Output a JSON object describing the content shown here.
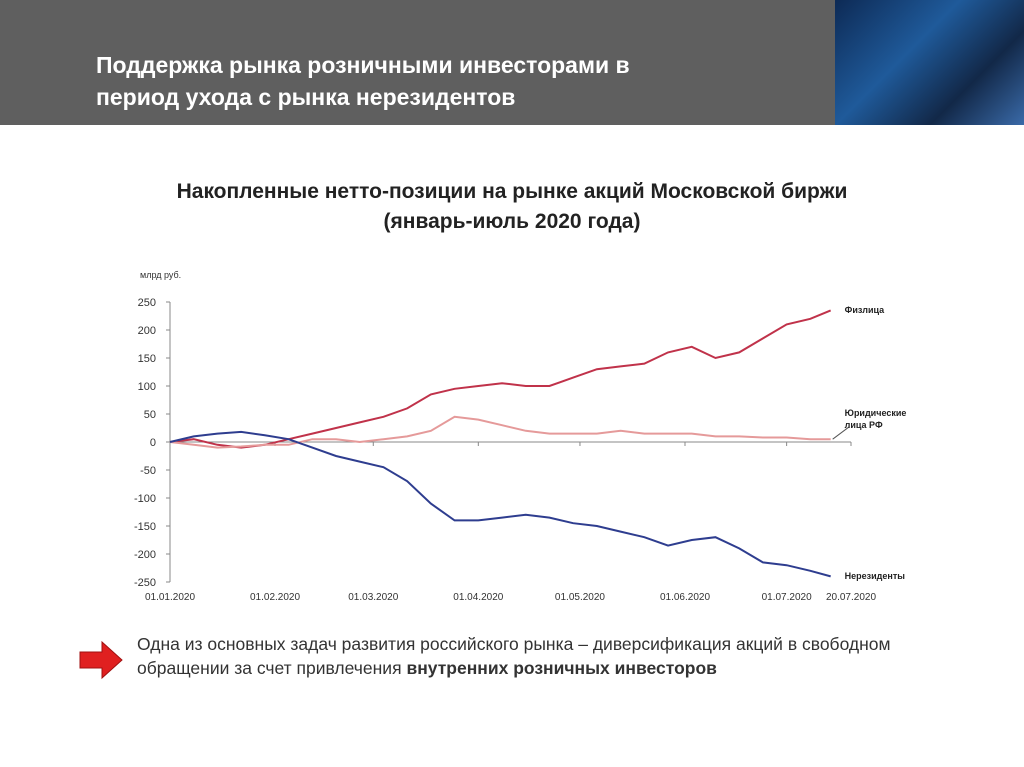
{
  "header": {
    "title_lines": [
      "Поддержка рынка розничными инвесторами в",
      "период ухода с рынка нерезидентов"
    ]
  },
  "chart_data": {
    "type": "line",
    "title": "Накопленные нетто-позиции на рынке акций Московской биржи",
    "subtitle": "(январь-июль 2020 года)",
    "y_unit": "млрд руб.",
    "x": [
      "2020-01-01",
      "2020-01-08",
      "2020-01-15",
      "2020-01-22",
      "2020-01-29",
      "2020-02-05",
      "2020-02-12",
      "2020-02-19",
      "2020-02-26",
      "2020-03-04",
      "2020-03-11",
      "2020-03-18",
      "2020-03-25",
      "2020-04-01",
      "2020-04-08",
      "2020-04-15",
      "2020-04-22",
      "2020-04-29",
      "2020-05-06",
      "2020-05-13",
      "2020-05-20",
      "2020-05-27",
      "2020-06-03",
      "2020-06-10",
      "2020-06-17",
      "2020-06-24",
      "2020-07-01",
      "2020-07-08",
      "2020-07-14"
    ],
    "series": [
      {
        "name": "Физлица",
        "color": "#c0324a",
        "values": [
          0,
          5,
          -5,
          -10,
          -5,
          5,
          15,
          25,
          35,
          45,
          60,
          85,
          95,
          100,
          105,
          100,
          100,
          115,
          130,
          135,
          140,
          160,
          170,
          150,
          160,
          185,
          210,
          220,
          235
        ]
      },
      {
        "name": "Юридические лица РФ",
        "color": "#e59a9a",
        "values": [
          0,
          -5,
          -10,
          -8,
          -5,
          -5,
          5,
          5,
          0,
          5,
          10,
          20,
          45,
          40,
          30,
          20,
          15,
          15,
          15,
          20,
          15,
          15,
          15,
          10,
          10,
          8,
          8,
          5,
          5
        ]
      },
      {
        "name": "Нерезиденты",
        "color": "#2e3d8f",
        "values": [
          0,
          10,
          15,
          18,
          12,
          5,
          -10,
          -25,
          -35,
          -45,
          -70,
          -110,
          -140,
          -140,
          -135,
          -130,
          -135,
          -145,
          -150,
          -160,
          -170,
          -185,
          -175,
          -170,
          -190,
          -215,
          -220,
          -230,
          -240
        ]
      }
    ],
    "xlim": [
      "2020-01-01",
      "2020-07-20"
    ],
    "xticks": [
      {
        "value": "2020-01-01",
        "label": "01.01.2020"
      },
      {
        "value": "2020-02-01",
        "label": "01.02.2020"
      },
      {
        "value": "2020-03-01",
        "label": "01.03.2020"
      },
      {
        "value": "2020-04-01",
        "label": "01.04.2020"
      },
      {
        "value": "2020-05-01",
        "label": "01.05.2020"
      },
      {
        "value": "2020-06-01",
        "label": "01.06.2020"
      },
      {
        "value": "2020-07-01",
        "label": "01.07.2020"
      },
      {
        "value": "2020-07-20",
        "label": "20.07.2020"
      }
    ],
    "ylim": [
      -250,
      250
    ],
    "yticks": [
      -250,
      -200,
      -150,
      -100,
      -50,
      0,
      50,
      100,
      150,
      200,
      250
    ]
  },
  "note": {
    "text": "Одна из основных задач развития российского рынка – диверсификация акций в свободном обращении за счет привлечения",
    "bold": "внутренних розничных инвесторов"
  }
}
